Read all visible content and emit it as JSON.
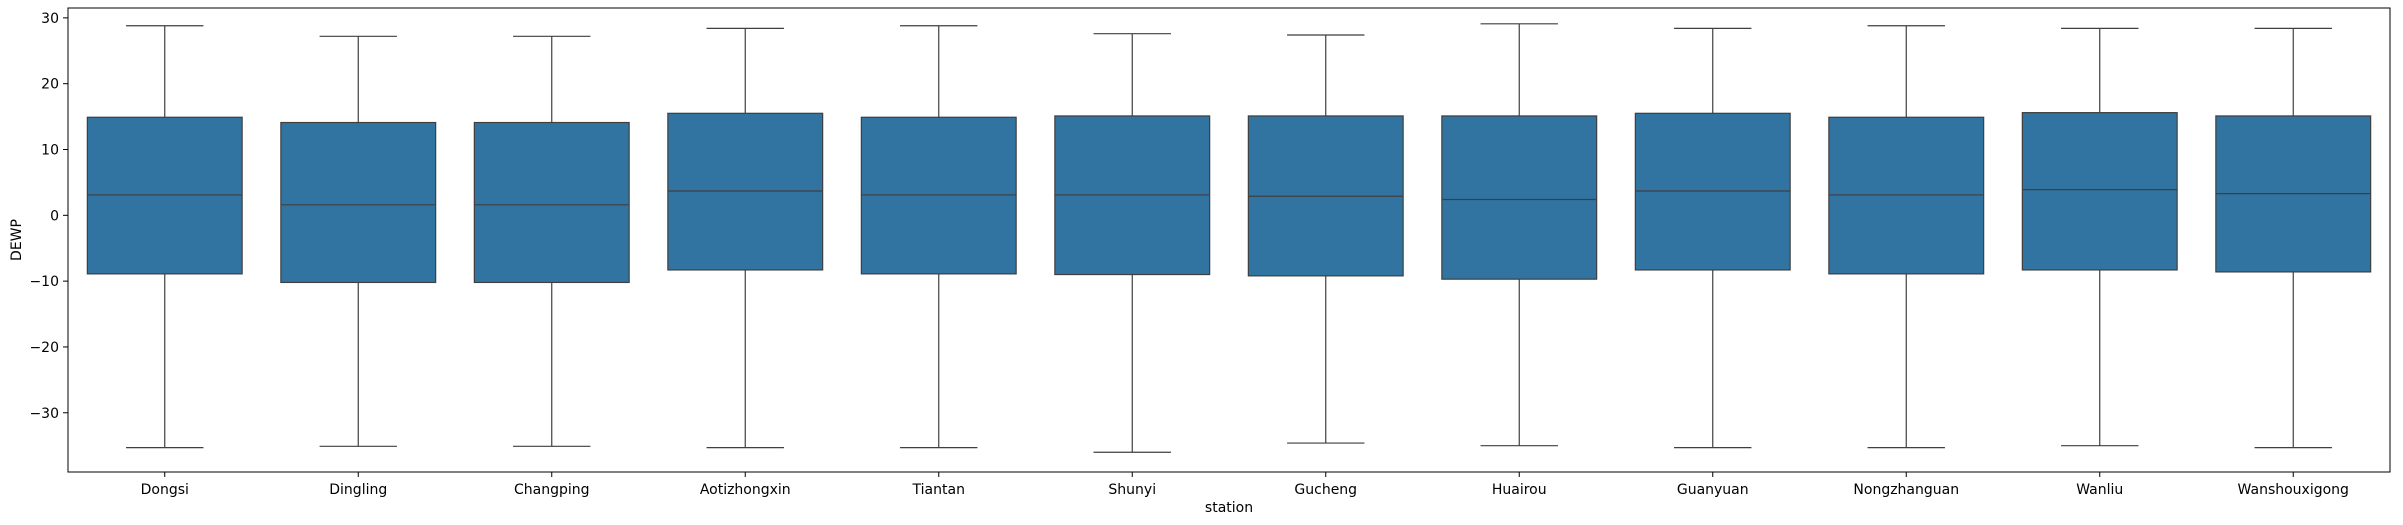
{
  "chart_data": {
    "type": "box",
    "title": "",
    "xlabel": "station",
    "ylabel": "DEWP",
    "ylim": [
      -39,
      31.5
    ],
    "yticks": [
      30,
      20,
      10,
      0,
      -10,
      -20,
      -30
    ],
    "ytick_labels": [
      "30",
      "20",
      "10",
      "0",
      "−10",
      "−20",
      "−30"
    ],
    "grid": false,
    "legend": "none",
    "box_color": "#3274a1",
    "line_color": "#3f3f3f",
    "categories": [
      "Dongsi",
      "Dingling",
      "Changping",
      "Aotizhongxin",
      "Tiantan",
      "Shunyi",
      "Gucheng",
      "Huairou",
      "Guanyuan",
      "Nongzhanguan",
      "Wanliu",
      "Wanshouxigong"
    ],
    "boxes": [
      {
        "whisker_low": -35.3,
        "q1": -8.9,
        "median": 3.1,
        "q3": 14.9,
        "whisker_high": 28.8
      },
      {
        "whisker_low": -35.1,
        "q1": -10.2,
        "median": 1.6,
        "q3": 14.1,
        "whisker_high": 27.2
      },
      {
        "whisker_low": -35.1,
        "q1": -10.2,
        "median": 1.6,
        "q3": 14.1,
        "whisker_high": 27.2
      },
      {
        "whisker_low": -35.3,
        "q1": -8.3,
        "median": 3.7,
        "q3": 15.5,
        "whisker_high": 28.4
      },
      {
        "whisker_low": -35.3,
        "q1": -8.9,
        "median": 3.1,
        "q3": 14.9,
        "whisker_high": 28.8
      },
      {
        "whisker_low": -36.0,
        "q1": -9.0,
        "median": 3.1,
        "q3": 15.1,
        "whisker_high": 27.6
      },
      {
        "whisker_low": -34.6,
        "q1": -9.2,
        "median": 2.9,
        "q3": 15.1,
        "whisker_high": 27.4
      },
      {
        "whisker_low": -35.0,
        "q1": -9.7,
        "median": 2.4,
        "q3": 15.1,
        "whisker_high": 29.1
      },
      {
        "whisker_low": -35.3,
        "q1": -8.3,
        "median": 3.7,
        "q3": 15.5,
        "whisker_high": 28.4
      },
      {
        "whisker_low": -35.3,
        "q1": -8.9,
        "median": 3.1,
        "q3": 14.9,
        "whisker_high": 28.8
      },
      {
        "whisker_low": -35.0,
        "q1": -8.3,
        "median": 3.9,
        "q3": 15.6,
        "whisker_high": 28.4
      },
      {
        "whisker_low": -35.3,
        "q1": -8.6,
        "median": 3.3,
        "q3": 15.1,
        "whisker_high": 28.4
      }
    ]
  }
}
